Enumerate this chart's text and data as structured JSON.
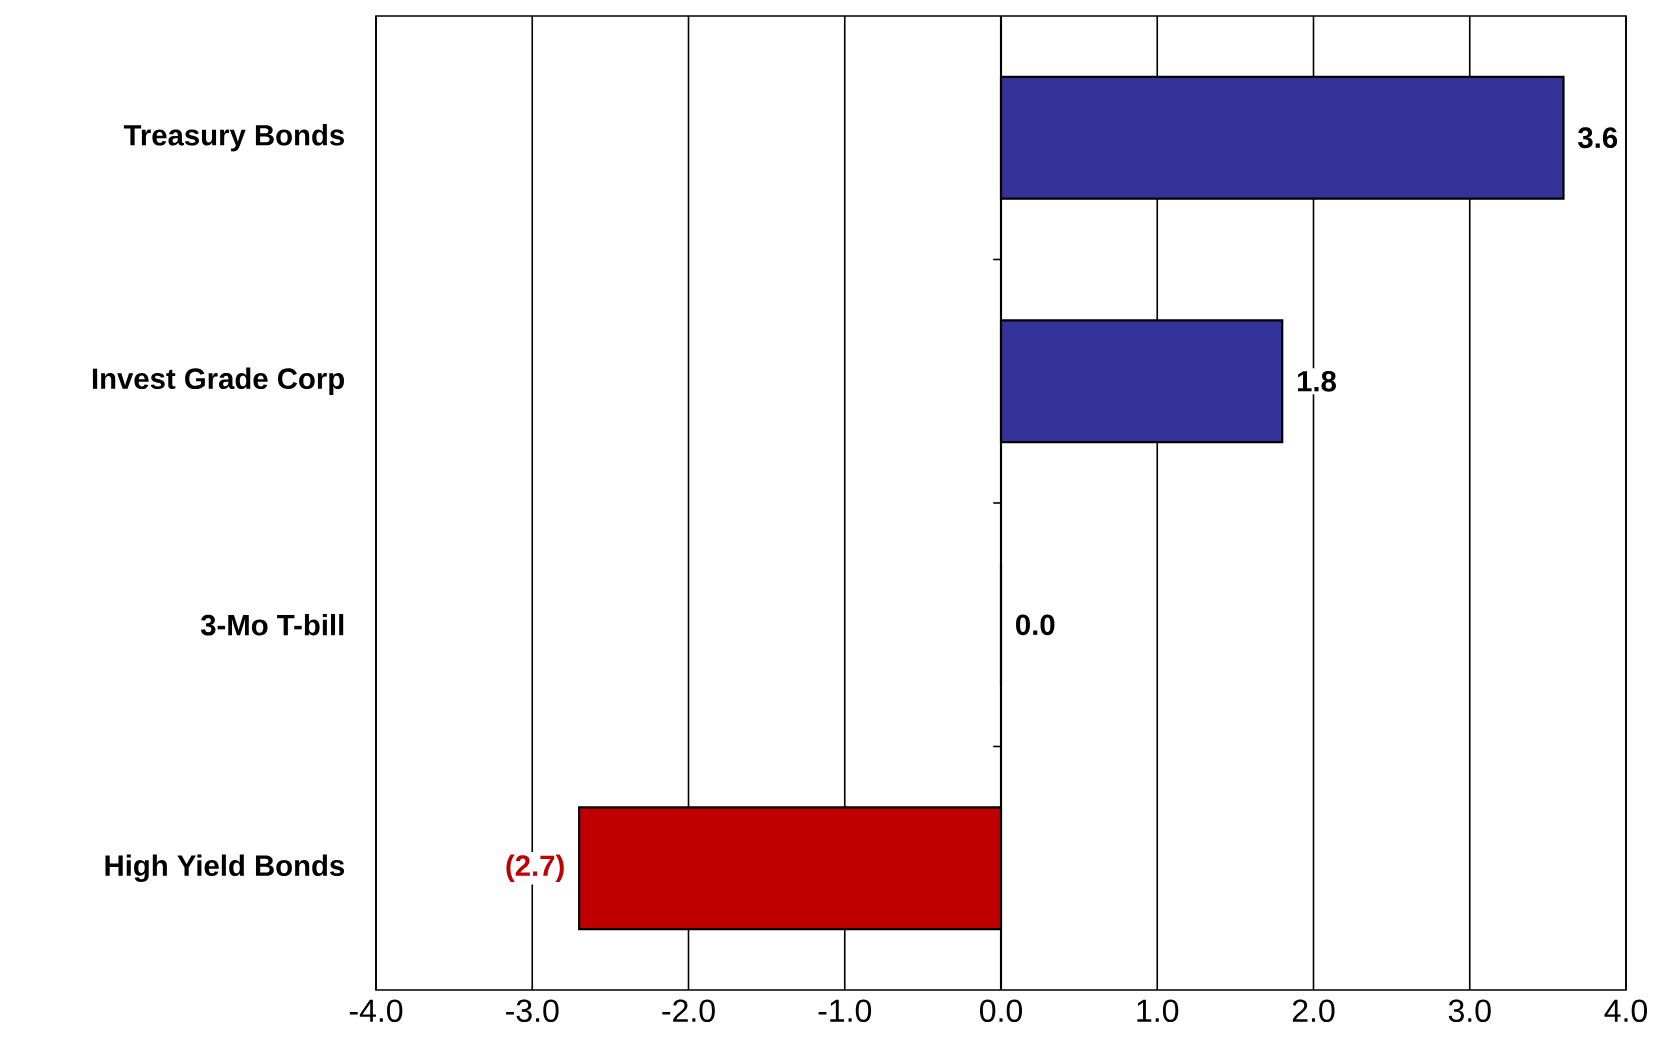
{
  "chart_data": {
    "type": "bar",
    "orientation": "horizontal",
    "categories": [
      "Treasury Bonds",
      "Invest Grade Corp",
      "3-Mo T-bill",
      "High Yield Bonds"
    ],
    "values": [
      3.6,
      1.8,
      0.0,
      -2.7
    ],
    "colors": [
      "#333399",
      "#333399",
      "#333399",
      "#c00000"
    ],
    "value_labels": [
      "3.6",
      "1.8",
      "0.0",
      "(2.7)"
    ],
    "xlim": [
      -4,
      4
    ],
    "xticks": [
      {
        "value": -4,
        "label": "-4.0"
      },
      {
        "value": -3,
        "label": "-3.0"
      },
      {
        "value": -2,
        "label": "-2.0"
      },
      {
        "value": -1,
        "label": "-1.0"
      },
      {
        "value": 0,
        "label": "0.0"
      },
      {
        "value": 1,
        "label": "1.0"
      },
      {
        "value": 2,
        "label": "2.0"
      },
      {
        "value": 3,
        "label": "3.0"
      },
      {
        "value": 4,
        "label": "4.0"
      }
    ],
    "grid": "x"
  }
}
